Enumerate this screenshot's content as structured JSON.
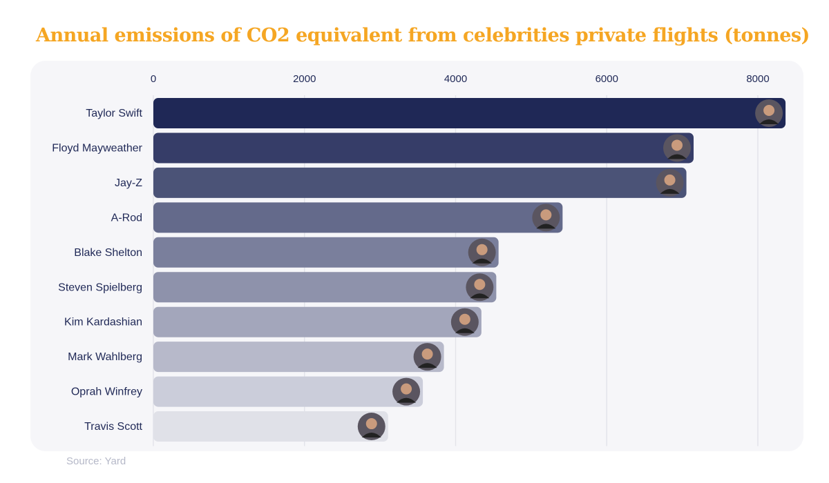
{
  "chart_data": {
    "type": "bar",
    "orientation": "horizontal",
    "title": "Annual emissions of CO2 equivalent from celebrities private flights (tonnes)",
    "categories": [
      "Taylor Swift",
      "Floyd Mayweather",
      "Jay-Z",
      "A-Rod",
      "Blake Shelton",
      "Steven Spielberg",
      "Kim Kardashian",
      "Mark Wahlberg",
      "Oprah Winfrey",
      "Travis Scott"
    ],
    "values": [
      8293.54,
      7076.8,
      6981.3,
      5342.7,
      4495.3,
      4465.2,
      4268.5,
      3772.3,
      3493.3,
      3033.3
    ],
    "xlim": [
      0,
      8400
    ],
    "xticks": [
      "0",
      "2000",
      "4000",
      "6000",
      "8000"
    ],
    "tick_values": [
      0,
      2000,
      4000,
      6000,
      8000
    ],
    "axis_position": "top",
    "grid": true,
    "colors": [
      "#1f2856",
      "#363d68",
      "#4b5377",
      "#646a8b",
      "#7a7f9c",
      "#8e92ab",
      "#a3a6bb",
      "#b7b9ca",
      "#cbcdda",
      "#e0e1e8"
    ],
    "avatar_icon": "celebrity-photo-icon"
  },
  "source": "Source: Yard",
  "title_color": "#f5a623"
}
